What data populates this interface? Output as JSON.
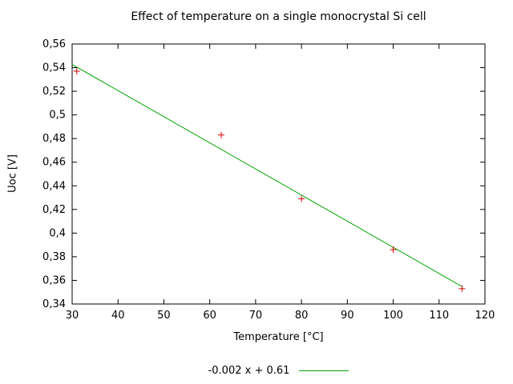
{
  "chart_data": {
    "type": "scatter",
    "title": "Effect of temperature on a single monocrystal Si cell",
    "xlabel": "Temperature [°C]",
    "ylabel": "Uoc [V]",
    "xlim": [
      30,
      120
    ],
    "ylim": [
      0.34,
      0.56
    ],
    "grid": false,
    "xticks": [
      {
        "v": 30,
        "label": "30"
      },
      {
        "v": 40,
        "label": "40"
      },
      {
        "v": 50,
        "label": "50"
      },
      {
        "v": 60,
        "label": "60"
      },
      {
        "v": 70,
        "label": "70"
      },
      {
        "v": 80,
        "label": "80"
      },
      {
        "v": 90,
        "label": "90"
      },
      {
        "v": 100,
        "label": "100"
      },
      {
        "v": 110,
        "label": "110"
      },
      {
        "v": 120,
        "label": "120"
      }
    ],
    "yticks": [
      {
        "v": 0.34,
        "label": "0,34"
      },
      {
        "v": 0.36,
        "label": "0,36"
      },
      {
        "v": 0.38,
        "label": "0,38"
      },
      {
        "v": 0.4,
        "label": "0,4"
      },
      {
        "v": 0.42,
        "label": "0,42"
      },
      {
        "v": 0.44,
        "label": "0,44"
      },
      {
        "v": 0.46,
        "label": "0,46"
      },
      {
        "v": 0.48,
        "label": "0,48"
      },
      {
        "v": 0.5,
        "label": "0,5"
      },
      {
        "v": 0.52,
        "label": "0,52"
      },
      {
        "v": 0.54,
        "label": "0,54"
      },
      {
        "v": 0.56,
        "label": "0,56"
      }
    ],
    "points": [
      {
        "x": 31,
        "y": 0.537
      },
      {
        "x": 62.5,
        "y": 0.483
      },
      {
        "x": 80,
        "y": 0.429
      },
      {
        "x": 100,
        "y": 0.386
      },
      {
        "x": 115,
        "y": 0.353
      }
    ],
    "fit_line": {
      "x1": 30,
      "y1": 0.5427,
      "x2": 115,
      "y2": 0.3548
    },
    "legend": {
      "label": "-0.002 x + 0.61",
      "position": "bottom-center"
    },
    "colors": {
      "line": "#00a400",
      "points": "#e00000",
      "axis": "#000000",
      "text": "#000000"
    }
  }
}
